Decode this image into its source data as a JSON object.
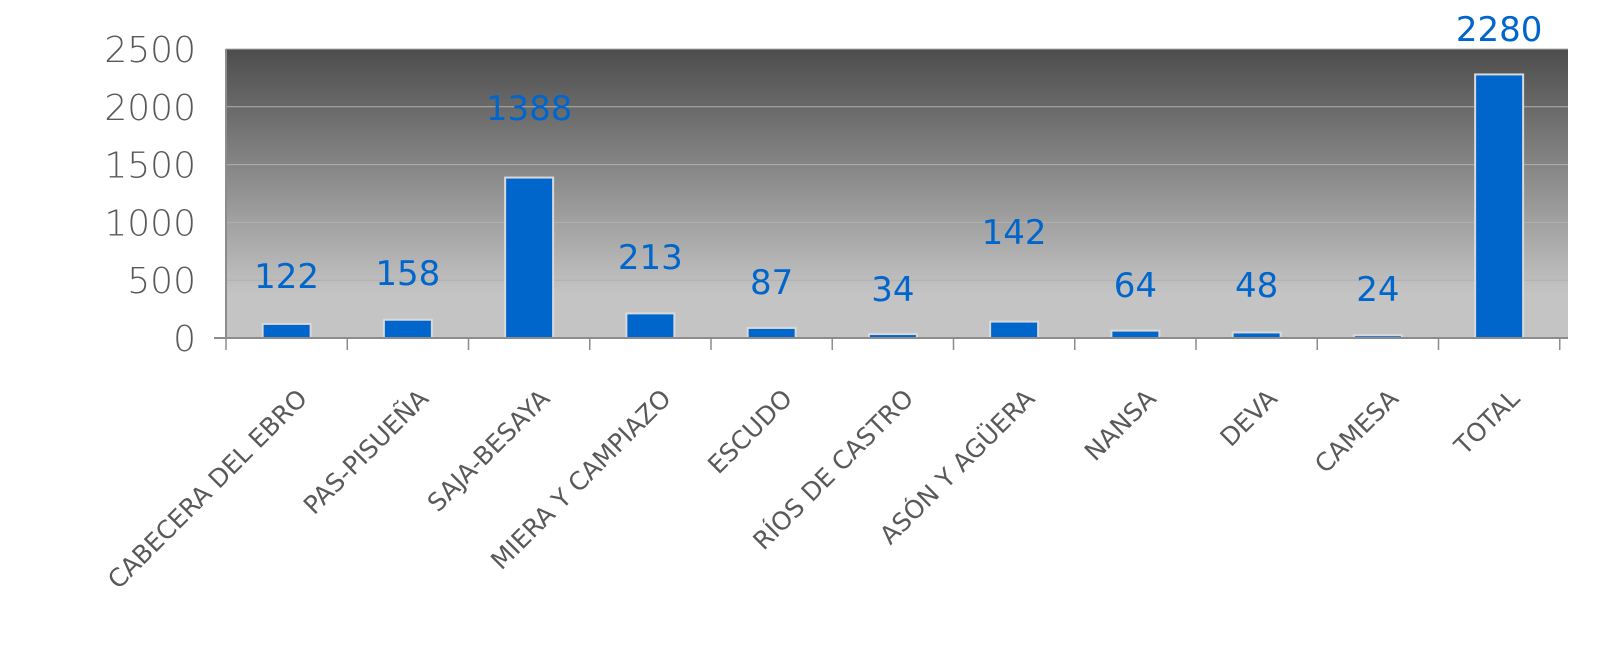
{
  "chart_data": {
    "type": "bar",
    "categories": [
      "CABECERA DEL EBRO",
      "PAS-PISUEÑA",
      "SAJA-BESAYA",
      "MIERA Y CAMPIAZO",
      "ESCUDO",
      "RÍOS DE CASTRO",
      "ASÓN Y AGÜERA",
      "NANSA",
      "DEVA",
      "CAMESA",
      "TOTAL"
    ],
    "series": [
      {
        "bar_values": [
          122,
          158,
          1388,
          213,
          87,
          34,
          142,
          64,
          48,
          24,
          2280
        ],
        "data_labels": [
          "122",
          "158",
          "1388",
          "213",
          "87",
          "34",
          "142",
          "64",
          "48",
          "24",
          "2280"
        ]
      }
    ],
    "y_ticks": [
      "0",
      "500",
      "1000",
      "1500",
      "2000",
      "2500"
    ],
    "ylim": [
      0,
      2500
    ],
    "grid": true,
    "legend": "none",
    "colors": {
      "bar": "#0066CC",
      "bar_border": "#D9D9D9",
      "label": "#0066CC",
      "axis_text": "#595959",
      "plot_top": "#4D4D4D",
      "plot_bottom": "#C4C4C4",
      "gridline": "#B0B0B0"
    }
  }
}
